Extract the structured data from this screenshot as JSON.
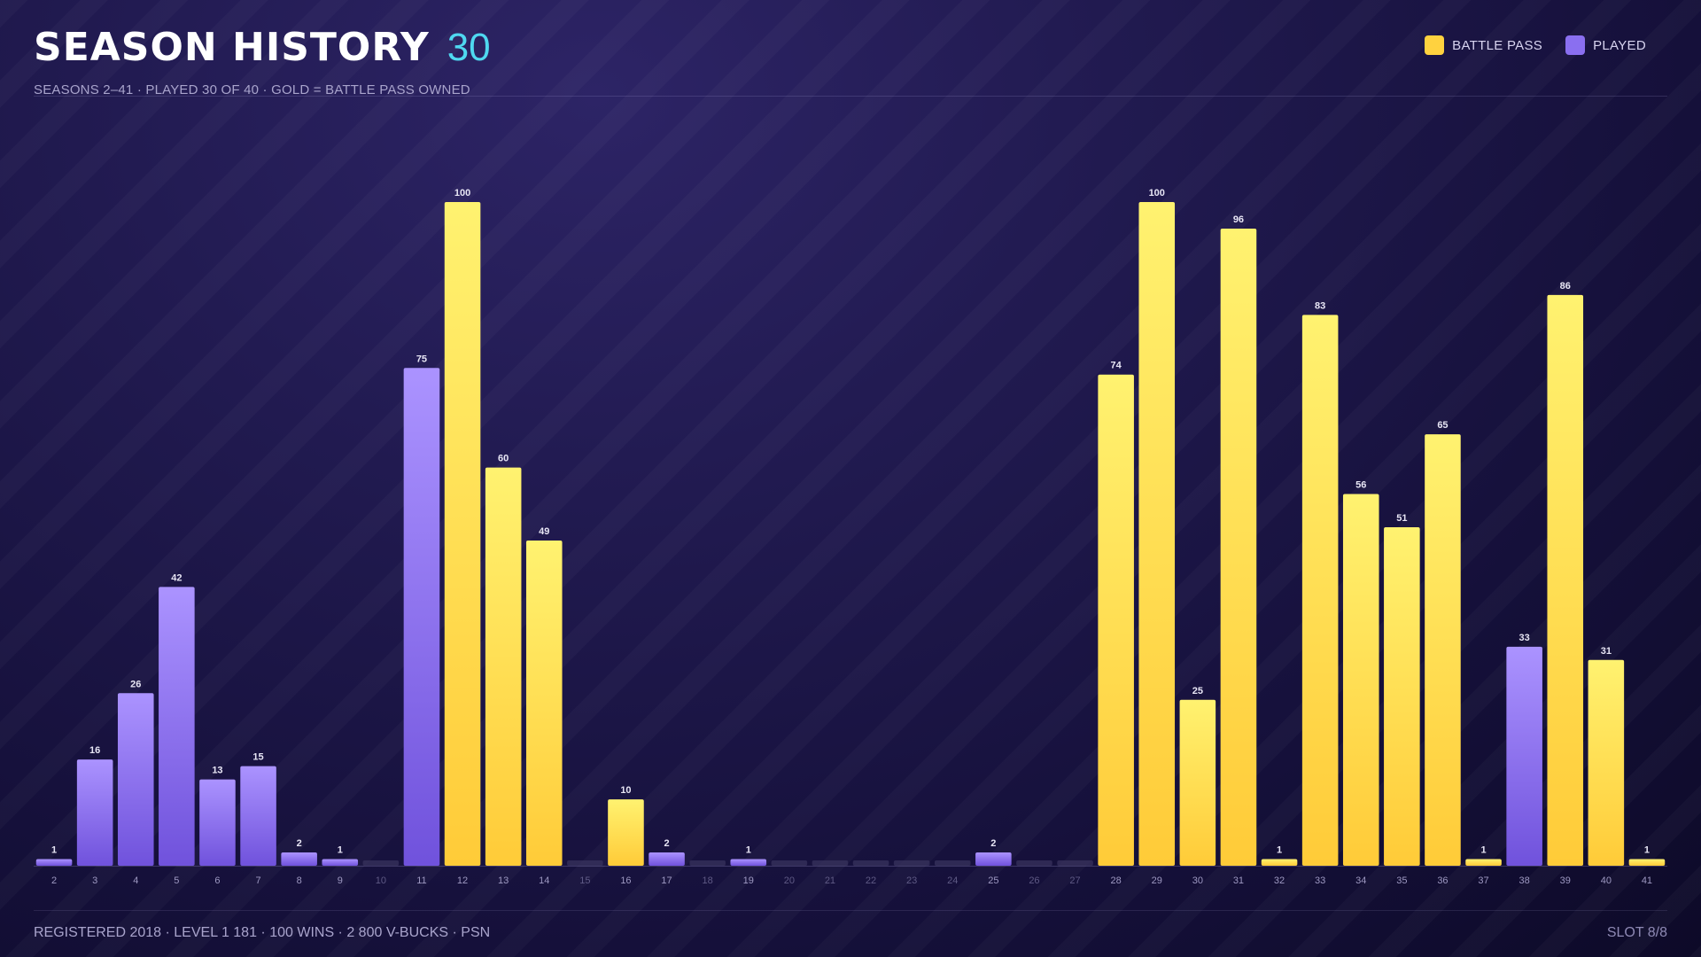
{
  "header": {
    "title": "SEASON HISTORY",
    "season_count": "30",
    "subtitle": "SEASONS 2–41  ·  PLAYED 30 OF 40  ·  GOLD = BATTLE PASS OWNED"
  },
  "legend": [
    {
      "label": "BATTLE PASS",
      "color": "#ffd23f"
    },
    {
      "label": "PLAYED",
      "color": "#8a6ff0"
    }
  ],
  "footer": {
    "left": "REGISTERED 2018  ·  LEVEL 1 181  ·  100 WINS  ·  2 800 V-BUCKS  ·  PSN",
    "right": "SLOT 8/8"
  },
  "colors": {
    "battle_pass": "#ffd23f",
    "played": "#8a6ff0",
    "not_played": "#3a3560",
    "accent": "#4fd8f0"
  },
  "chart_data": {
    "type": "bar",
    "categories": [
      "2",
      "3",
      "4",
      "5",
      "6",
      "7",
      "8",
      "9",
      "10",
      "11",
      "12",
      "13",
      "14",
      "15",
      "16",
      "17",
      "18",
      "19",
      "20",
      "21",
      "22",
      "23",
      "24",
      "25",
      "26",
      "27",
      "28",
      "29",
      "30",
      "31",
      "32",
      "33",
      "34",
      "35",
      "36",
      "37",
      "38",
      "39",
      "40",
      "41"
    ],
    "values": [
      1,
      16,
      26,
      42,
      13,
      15,
      2,
      1,
      0,
      75,
      100,
      60,
      49,
      0,
      10,
      2,
      0,
      1,
      0,
      0,
      0,
      0,
      0,
      2,
      0,
      0,
      74,
      100,
      25,
      96,
      1,
      83,
      56,
      51,
      65,
      1,
      33,
      86,
      31,
      1
    ],
    "status": [
      "played",
      "played",
      "played",
      "played",
      "played",
      "played",
      "played",
      "played",
      "none",
      "played",
      "battle_pass",
      "battle_pass",
      "battle_pass",
      "none",
      "battle_pass",
      "played",
      "none",
      "played",
      "none",
      "none",
      "none",
      "none",
      "none",
      "played",
      "none",
      "none",
      "battle_pass",
      "battle_pass",
      "battle_pass",
      "battle_pass",
      "battle_pass",
      "battle_pass",
      "battle_pass",
      "battle_pass",
      "battle_pass",
      "battle_pass",
      "played",
      "battle_pass",
      "battle_pass",
      "battle_pass"
    ],
    "ylim": [
      0,
      100
    ],
    "grid": false,
    "legend_position": "top-right"
  }
}
